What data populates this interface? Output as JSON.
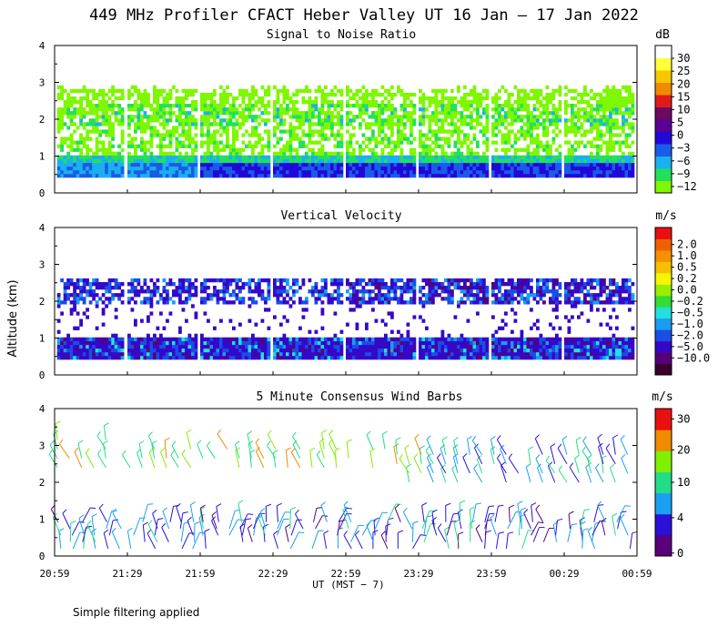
{
  "title": "449 MHz Profiler CFACT Heber Valley UT 16 Jan – 17 Jan 2022",
  "footnote": "Simple filtering applied",
  "colors": {
    "snr": [
      "#7ff700",
      "#22e05a",
      "#1ab0f0",
      "#1a5be8",
      "#2208d8",
      "#5a0096",
      "#6a0a60",
      "#e01a1a",
      "#f28a00",
      "#f5c800",
      "#ffff3a",
      "#ffffff"
    ],
    "vel": [
      "#3a002e",
      "#55007a",
      "#3508c8",
      "#1a4de6",
      "#1a9cf0",
      "#22e0e0",
      "#33dd33",
      "#99ee00",
      "#f5f500",
      "#f5c000",
      "#f59000",
      "#f06000",
      "#e81010"
    ],
    "barb": [
      "#5a007a",
      "#2a10d8",
      "#1aa0f0",
      "#22dd88",
      "#7ff000",
      "#f08a00",
      "#e81010"
    ]
  },
  "chart_data": [
    {
      "type": "heatmap",
      "title": "Signal to Noise Ratio",
      "ylabel": "Altitude (km)",
      "ylim": [
        0,
        4
      ],
      "yticks": [
        "0",
        "1",
        "2",
        "3",
        "4"
      ],
      "colorbar_unit": "dB",
      "colorbar_labels": [
        "−12",
        "−9",
        "−6",
        "−3",
        "0",
        "5",
        "10",
        "15",
        "20",
        "25",
        "30"
      ],
      "gates_km": [
        0.42,
        2.9
      ],
      "blocks": [
        {
          "start": "21:00",
          "end": "21:27"
        },
        {
          "start": "21:29",
          "end": "21:57"
        },
        {
          "start": "21:59",
          "end": "22:27"
        },
        {
          "start": "22:29",
          "end": "22:57"
        },
        {
          "start": "22:59",
          "end": "23:27"
        },
        {
          "start": "23:29",
          "end": "23:57"
        },
        {
          "start": "23:59",
          "end": "00:27"
        },
        {
          "start": "00:29",
          "end": "00:57"
        }
      ]
    },
    {
      "type": "heatmap",
      "title": "Vertical Velocity",
      "ylabel": "Altitude (km)",
      "ylim": [
        0,
        4
      ],
      "yticks": [
        "0",
        "1",
        "2",
        "3",
        "4"
      ],
      "colorbar_unit": "m/s",
      "colorbar_labels": [
        "−10.0",
        "−5.0",
        "−2.0",
        "−1.0",
        "−0.5",
        "−0.2",
        "0.0",
        "0.2",
        "0.5",
        "1.0",
        "2.0"
      ]
    },
    {
      "type": "scatter",
      "title": "5 Minute Consensus Wind Barbs",
      "ylabel": "Altitude (km)",
      "ylim": [
        0,
        4
      ],
      "yticks": [
        "0",
        "1",
        "2",
        "3",
        "4"
      ],
      "colorbar_unit": "m/s",
      "colorbar_labels": [
        "0",
        "4",
        "10",
        "20",
        "30"
      ],
      "xlabel": "UT  (MST − 7)",
      "x_ticklabels": [
        "20:59",
        "21:29",
        "21:59",
        "22:29",
        "22:59",
        "23:29",
        "23:59",
        "00:29",
        "00:59"
      ],
      "upper_layer_km": [
        2.0,
        3.3
      ],
      "lower_layer_km": [
        0.1,
        1.3
      ]
    }
  ]
}
